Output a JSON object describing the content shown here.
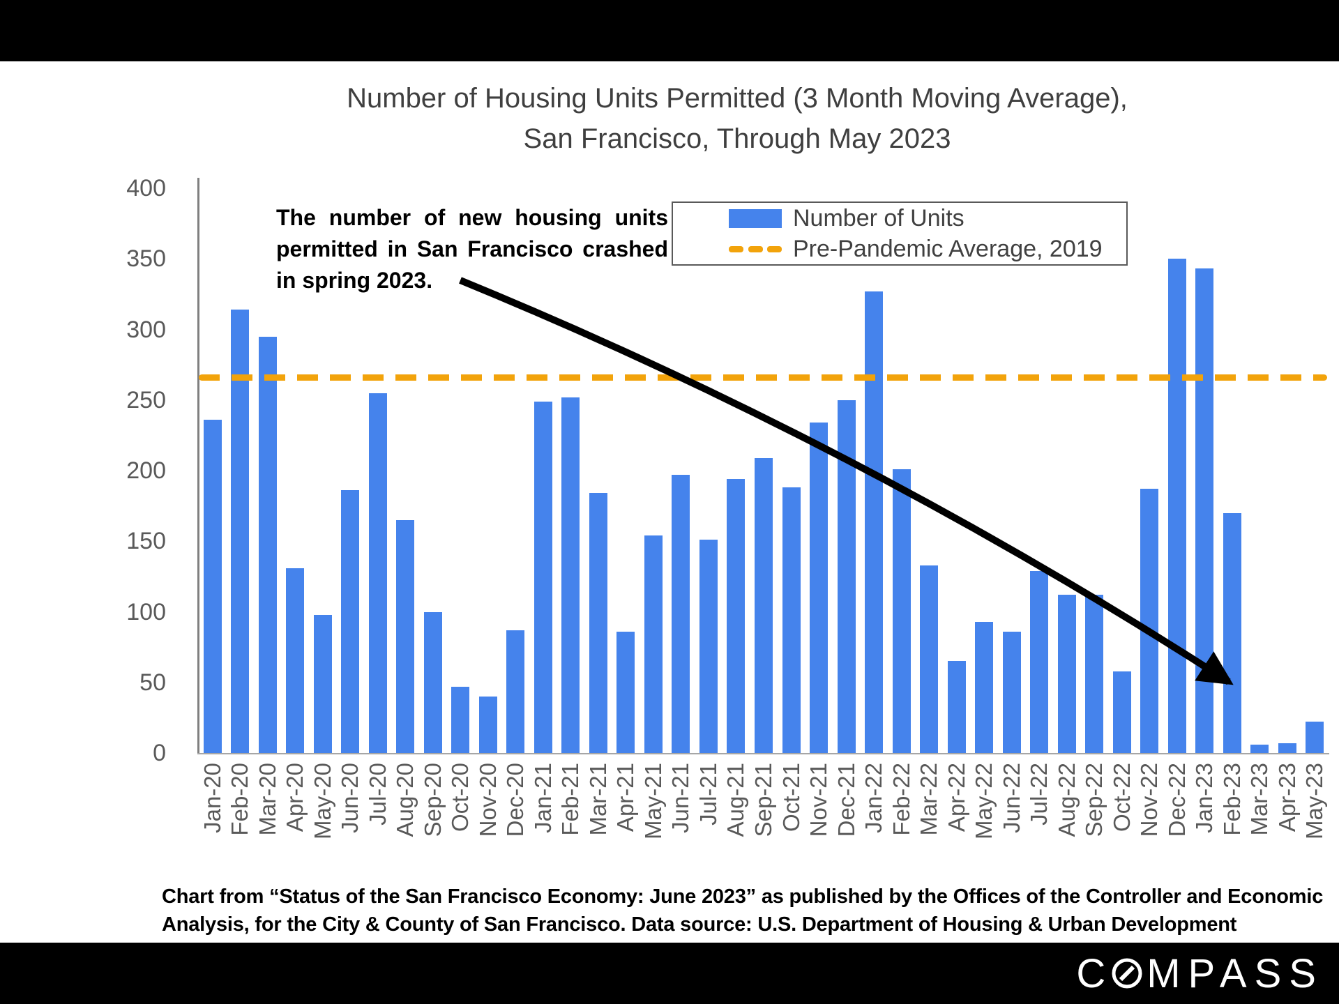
{
  "title": {
    "line1": "Number of Housing Units Permitted (3 Month Moving Average),",
    "line2": "San Francisco, Through May 2023"
  },
  "annotation": {
    "lines": [
      "The number of new housing units",
      "permitted in San Francisco crashed",
      "in spring 2023."
    ]
  },
  "legend": {
    "items": [
      {
        "label": "Number of Units",
        "type": "bar",
        "color": "#4583ec"
      },
      {
        "label": "Pre-Pandemic Average, 2019",
        "type": "dashed-line",
        "color": "#F2A30B"
      }
    ]
  },
  "chart_data": {
    "type": "bar",
    "title": "Number of Housing Units Permitted (3 Month Moving Average), San Francisco, Through May 2023",
    "categories": [
      "Jan-20",
      "Feb-20",
      "Mar-20",
      "Apr-20",
      "May-20",
      "Jun-20",
      "Jul-20",
      "Aug-20",
      "Sep-20",
      "Oct-20",
      "Nov-20",
      "Dec-20",
      "Jan-21",
      "Feb-21",
      "Mar-21",
      "Apr-21",
      "May-21",
      "Jun-21",
      "Jul-21",
      "Aug-21",
      "Sep-21",
      "Oct-21",
      "Nov-21",
      "Dec-21",
      "Jan-22",
      "Feb-22",
      "Mar-22",
      "Apr-22",
      "May-22",
      "Jun-22",
      "Jul-22",
      "Aug-22",
      "Sep-22",
      "Oct-22",
      "Nov-22",
      "Dec-22",
      "Jan-23",
      "Feb-23",
      "Mar-23",
      "Apr-23",
      "May-23"
    ],
    "series": [
      {
        "name": "Number of Units",
        "color": "#4583ec",
        "values": [
          236,
          314,
          295,
          131,
          98,
          186,
          255,
          165,
          100,
          47,
          40,
          87,
          249,
          252,
          184,
          86,
          154,
          197,
          151,
          194,
          209,
          188,
          234,
          250,
          327,
          201,
          133,
          65,
          93,
          86,
          129,
          112,
          112,
          58,
          187,
          350,
          343,
          170,
          6,
          7,
          22
        ]
      }
    ],
    "average_line": {
      "label": "Pre-Pandemic Average, 2019",
      "value": 266,
      "color": "#F2A30B",
      "style": "dashed"
    },
    "ylim": [
      0,
      400
    ],
    "yticks": [
      0,
      50,
      100,
      150,
      200,
      250,
      300,
      350,
      400
    ],
    "grid": false,
    "legend_position": "top-right",
    "x_tick_rotation": -90
  },
  "caption": {
    "line1": "Chart from “Status of the San Francisco Economy: June 2023” as published by the Offices of the Controller and Economic",
    "line2": "Analysis, for the City & County of San Francisco. Data source:  U.S. Department of Housing & Urban Development"
  },
  "logo": {
    "name": "COMPASS",
    "text_before_o": "C",
    "text_after_o": "MPASS"
  },
  "colors": {
    "bar": "#4583ec",
    "average_line": "#F2A30B",
    "title_text": "#3f3f3f",
    "axis_text": "#595959",
    "frame_bars": "#000000"
  }
}
